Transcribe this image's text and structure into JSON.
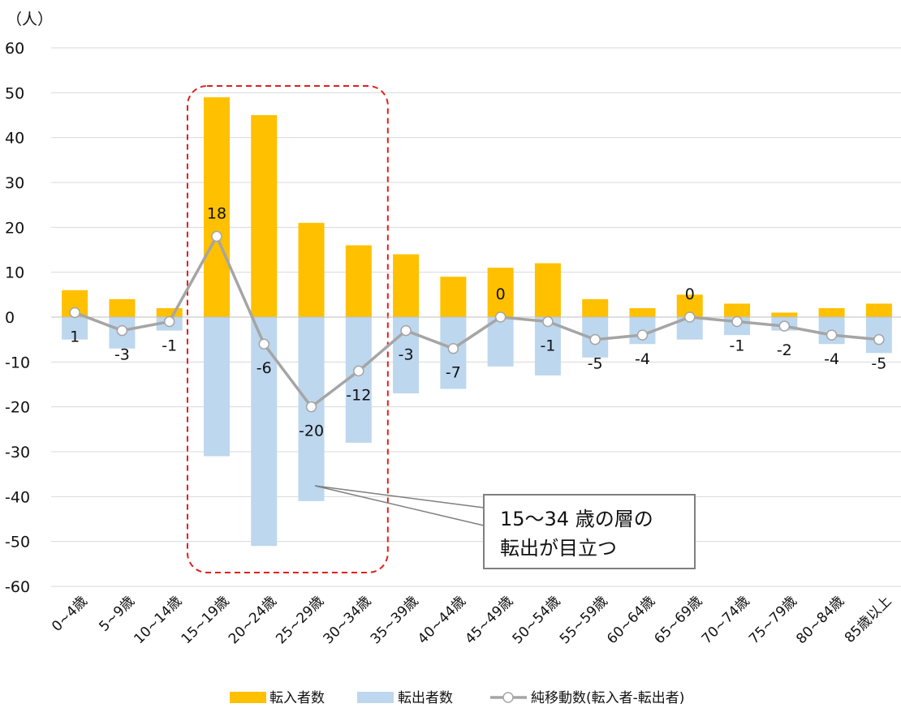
{
  "chart_data": {
    "type": "bar",
    "unit_label": "（人）",
    "categories": [
      "0~4歳",
      "5~9歳",
      "10~14歳",
      "15~19歳",
      "20~24歳",
      "25~29歳",
      "30~34歳",
      "35~39歳",
      "40~44歳",
      "45~49歳",
      "50~54歳",
      "55~59歳",
      "60~64歳",
      "65~69歳",
      "70~74歳",
      "75~79歳",
      "80~84歳",
      "85歳以上"
    ],
    "series": [
      {
        "name": "転入者数",
        "type": "bar",
        "color": "#FFC000",
        "values": [
          6,
          4,
          2,
          49,
          45,
          21,
          16,
          14,
          9,
          11,
          12,
          4,
          2,
          5,
          3,
          1,
          2,
          3
        ]
      },
      {
        "name": "転出者数",
        "type": "bar",
        "color": "#BDD7EE",
        "values": [
          -5,
          -7,
          -3,
          -31,
          -51,
          -41,
          -28,
          -17,
          -16,
          -11,
          -13,
          -9,
          -6,
          -5,
          -4,
          -3,
          -6,
          -8
        ]
      },
      {
        "name": "純移動数(転入者-転出者)",
        "type": "line",
        "color": "#A5A5A5",
        "values": [
          1,
          -3,
          -1,
          18,
          -6,
          -20,
          -12,
          -3,
          -7,
          0,
          -1,
          -5,
          -4,
          0,
          -1,
          -2,
          -4,
          -5
        ],
        "labels": [
          "1",
          "-3",
          "-1",
          "18",
          "-6",
          "-20",
          "-12",
          "-3",
          "-7",
          "0",
          "-1",
          "-5",
          "-4",
          "0",
          "-1",
          "-2",
          "-4",
          "-5"
        ]
      }
    ],
    "ylim": [
      -60,
      60
    ],
    "yticks": [
      -60,
      -50,
      -40,
      -30,
      -20,
      -10,
      0,
      10,
      20,
      30,
      40,
      50,
      60
    ],
    "grid": true,
    "legend_position": "bottom",
    "annotation": {
      "lines": [
        "15～34 歳の層の",
        "転出が目立つ"
      ],
      "highlight_categories": [
        "15~19歳",
        "20~24歳",
        "25~29歳",
        "30~34歳"
      ],
      "highlight_color": "#E0201B"
    }
  }
}
